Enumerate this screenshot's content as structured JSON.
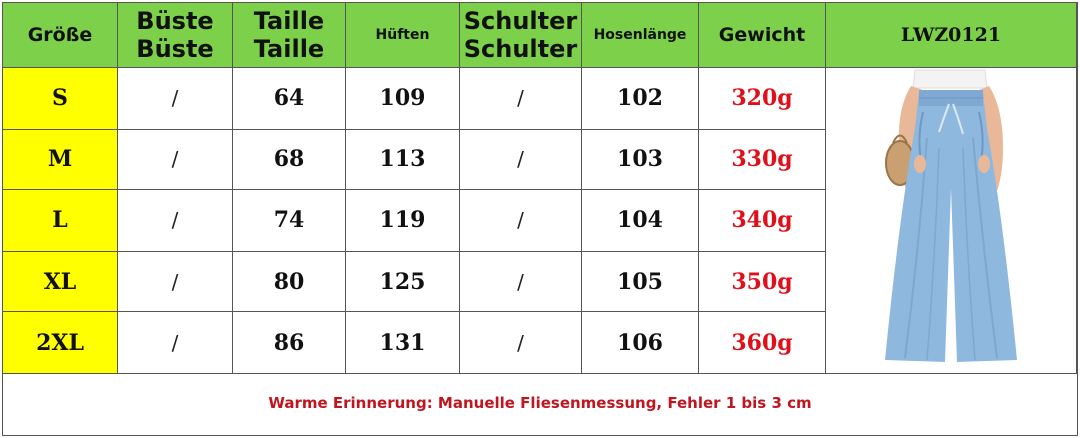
{
  "header": {
    "groesse": "Größe",
    "bueste_1": "Büste",
    "bueste_2": "Büste",
    "taille_1": "Taille",
    "taille_2": "Taille",
    "hueften": "Hüften",
    "schulter_1": "Schulter",
    "schulter_2": "Schulter",
    "hosenlaenge": "Hosenlänge",
    "gewicht": "Gewicht",
    "model": "LWZ0121"
  },
  "rows": [
    {
      "size": "S",
      "bust": "/",
      "waist": "64",
      "hips": "109",
      "shoulder": "/",
      "length": "102",
      "weight": "320g"
    },
    {
      "size": "M",
      "bust": "/",
      "waist": "68",
      "hips": "113",
      "shoulder": "/",
      "length": "103",
      "weight": "330g"
    },
    {
      "size": "L",
      "bust": "/",
      "waist": "74",
      "hips": "119",
      "shoulder": "/",
      "length": "104",
      "weight": "340g"
    },
    {
      "size": "XL",
      "bust": "/",
      "waist": "80",
      "hips": "125",
      "shoulder": "/",
      "length": "105",
      "weight": "350g"
    },
    {
      "size": "2XL",
      "bust": "/",
      "waist": "86",
      "hips": "131",
      "shoulder": "/",
      "length": "106",
      "weight": "360g"
    }
  ],
  "note": "Warme Erinnerung: Manuelle Fliesenmessung, Fehler 1 bis 3 cm",
  "colors": {
    "header_bg": "#7dd04a",
    "size_bg": "#ffff00",
    "weight_text": "#e0101a",
    "note_text": "#c0161f",
    "pants": "#8fb8de"
  },
  "image": {
    "icon": "wide-leg-pants-photo"
  }
}
